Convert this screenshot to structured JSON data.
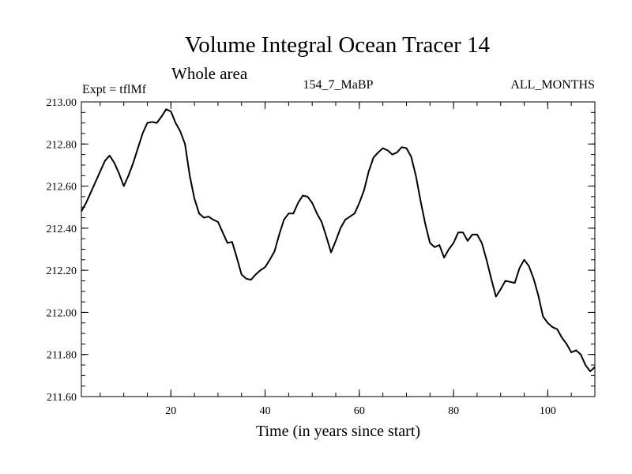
{
  "chart_data": {
    "type": "line",
    "title": "Volume Integral Ocean Tracer 14",
    "subtitle": "Whole area",
    "annotations": {
      "left": "Expt = tflMf",
      "center": "154_7_MaBP",
      "right": "ALL_MONTHS"
    },
    "xlabel": "Time (in years since start)",
    "ylabel": "",
    "xlim": [
      1,
      110
    ],
    "ylim": [
      211.6,
      213.0
    ],
    "x_ticks": [
      20,
      40,
      60,
      80,
      100
    ],
    "y_ticks": [
      "211.60",
      "211.80",
      "212.00",
      "212.20",
      "212.40",
      "212.60",
      "212.80",
      "213.00"
    ],
    "grid": false,
    "series": [
      {
        "name": "Volume Integral Ocean Tracer 14",
        "x": [
          1,
          2,
          3,
          4,
          5,
          6,
          7,
          8,
          9,
          10,
          11,
          12,
          13,
          14,
          15,
          16,
          17,
          18,
          19,
          20,
          21,
          22,
          23,
          24,
          25,
          26,
          27,
          28,
          29,
          30,
          31,
          32,
          33,
          34,
          35,
          36,
          37,
          38,
          39,
          40,
          41,
          42,
          43,
          44,
          45,
          46,
          47,
          48,
          49,
          50,
          51,
          52,
          53,
          54,
          55,
          56,
          57,
          58,
          59,
          60,
          61,
          62,
          63,
          64,
          65,
          66,
          67,
          68,
          69,
          70,
          71,
          72,
          73,
          74,
          75,
          76,
          77,
          78,
          79,
          80,
          81,
          82,
          83,
          84,
          85,
          86,
          87,
          88,
          89,
          90,
          91,
          92,
          93,
          94,
          95,
          96,
          97,
          98,
          99,
          100,
          101,
          102,
          103,
          104,
          105,
          106,
          107,
          108,
          109,
          110
        ],
        "values": [
          212.48,
          212.52,
          212.57,
          212.62,
          212.67,
          212.72,
          212.745,
          212.71,
          212.66,
          212.6,
          212.65,
          212.71,
          212.78,
          212.85,
          212.9,
          212.905,
          212.9,
          212.93,
          212.965,
          212.955,
          212.9,
          212.86,
          212.8,
          212.65,
          212.54,
          212.47,
          212.45,
          212.455,
          212.44,
          212.43,
          212.38,
          212.33,
          212.335,
          212.26,
          212.18,
          212.16,
          212.155,
          212.18,
          212.2,
          212.215,
          212.25,
          212.29,
          212.37,
          212.44,
          212.47,
          212.47,
          212.52,
          212.555,
          212.55,
          212.52,
          212.47,
          212.43,
          212.36,
          212.285,
          212.34,
          212.4,
          212.44,
          212.455,
          212.47,
          212.52,
          212.58,
          212.67,
          212.735,
          212.76,
          212.78,
          212.77,
          212.75,
          212.76,
          212.785,
          212.78,
          212.74,
          212.65,
          212.53,
          212.42,
          212.33,
          212.31,
          212.32,
          212.26,
          212.3,
          212.33,
          212.38,
          212.38,
          212.34,
          212.37,
          212.37,
          212.33,
          212.25,
          212.16,
          212.075,
          212.11,
          212.15,
          212.145,
          212.14,
          212.21,
          212.25,
          212.22,
          212.16,
          212.08,
          211.98,
          211.95,
          211.93,
          211.92,
          211.88,
          211.85,
          211.81,
          211.82,
          211.8,
          211.75,
          211.72,
          211.74
        ]
      }
    ]
  }
}
